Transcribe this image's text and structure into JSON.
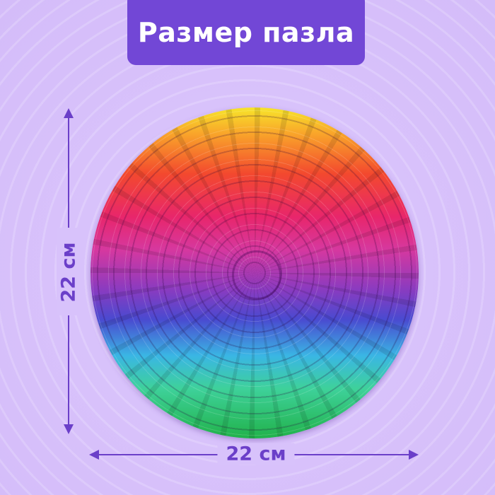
{
  "title": "Размер пазла",
  "dimensions": {
    "height_label": "22 см",
    "width_label": "22 см"
  },
  "colors": {
    "accent": "#7247d6",
    "arrow": "#6b3fc9",
    "background": "#d9c3fb"
  },
  "product": {
    "shape": "round rainbow mandala puzzle"
  }
}
